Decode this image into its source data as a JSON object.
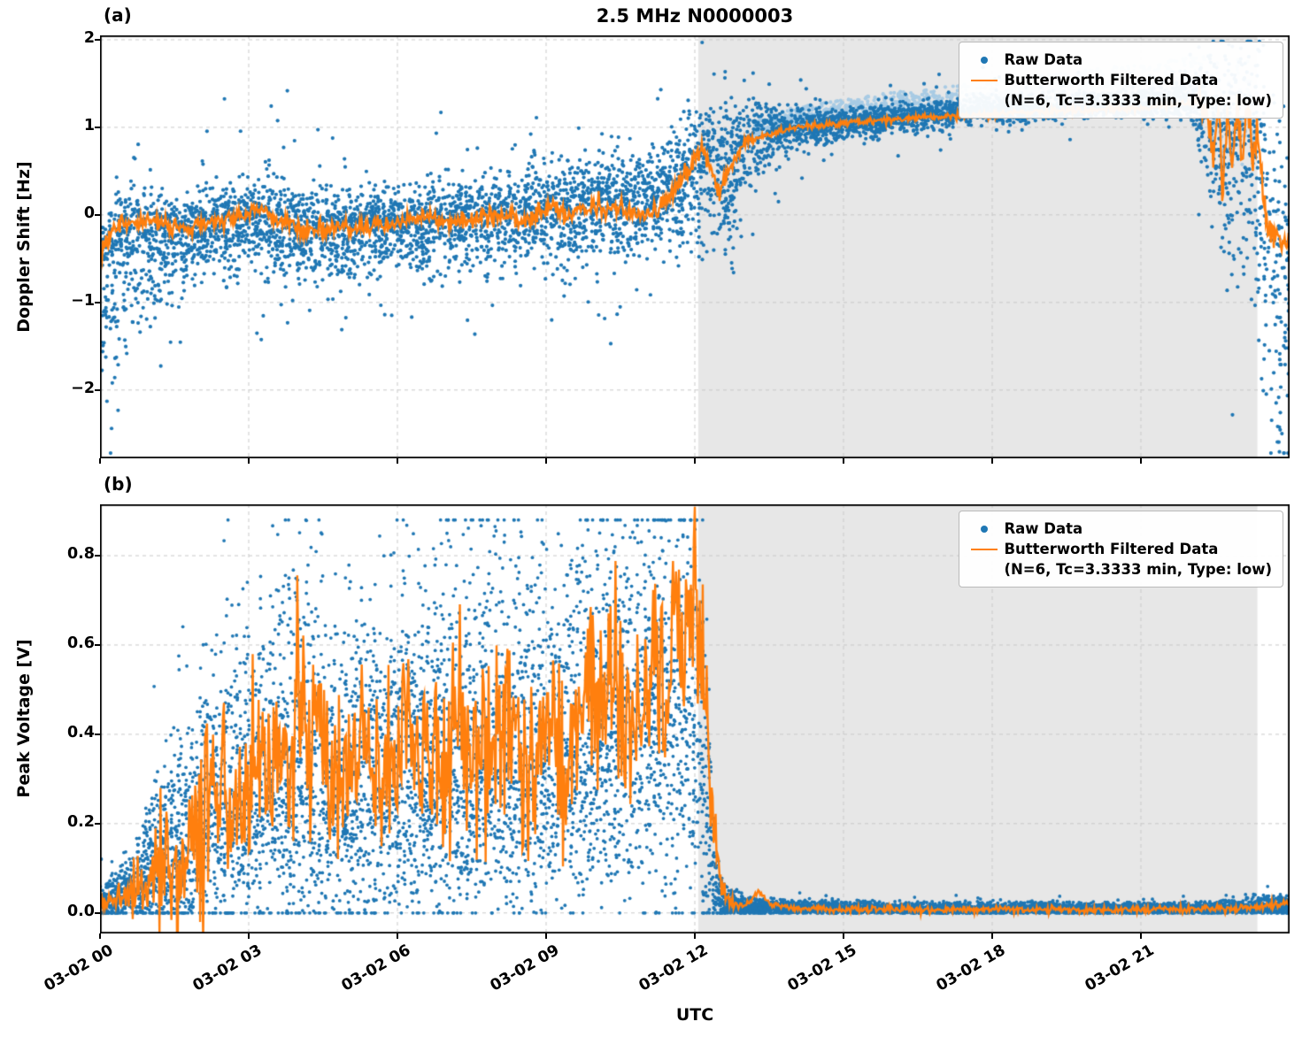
{
  "figure": {
    "title": "2.5 MHz N0000003",
    "panel_a_label": "(a)",
    "panel_b_label": "(b)",
    "xlabel": "UTC",
    "ylabel_a": "Doppler Shift [Hz]",
    "ylabel_b": "Peak Voltage [V]"
  },
  "legend": {
    "raw_label": "Raw Data",
    "filtered_label": "Butterworth Filtered Data",
    "filtered_sublabel": "(N=6, Tc=3.3333 min, Type: low)"
  },
  "colors": {
    "raw": "#1f77b4",
    "raw_light": "#a8cbe4",
    "filtered": "#ff7f0e",
    "shade": "#e7e7e7",
    "grid": "#c9c9c9",
    "frame": "#000000"
  },
  "chart_data": [
    {
      "id": "a",
      "type": "scatter",
      "title": "2.5 MHz N0000003",
      "ylabel": "Doppler Shift [Hz]",
      "xlabel": "",
      "legend_entries": [
        "Raw Data",
        "Butterworth Filtered Data (N=6, Tc=3.3333 min, Type: low)"
      ],
      "xlim": [
        0,
        24
      ],
      "ylim": [
        -2.78,
        2.05
      ],
      "grid": true,
      "show_x_tick_labels": false,
      "yticks": [
        {
          "v": 2,
          "label": "2"
        },
        {
          "v": 1,
          "label": "1"
        },
        {
          "v": 0,
          "label": "0"
        },
        {
          "v": -1,
          "label": "−1"
        },
        {
          "v": -2,
          "label": "−2"
        }
      ],
      "xticks": [
        {
          "v": 0,
          "label": "03-02 00"
        },
        {
          "v": 3,
          "label": "03-02 03"
        },
        {
          "v": 6,
          "label": "03-02 06"
        },
        {
          "v": 9,
          "label": "03-02 09"
        },
        {
          "v": 12,
          "label": "03-02 12"
        },
        {
          "v": 15,
          "label": "03-02 15"
        },
        {
          "v": 18,
          "label": "03-02 18"
        },
        {
          "v": 21,
          "label": "03-02 21"
        }
      ],
      "shade_span": [
        12.07,
        23.35
      ],
      "line": {
        "t": [
          0,
          0.15,
          0.3,
          0.5,
          0.8,
          1,
          1.5,
          2,
          2.5,
          3,
          3.1,
          3.3,
          3.6,
          4,
          4.5,
          5,
          5.5,
          6,
          6.5,
          7,
          7.5,
          8,
          8.5,
          9,
          9.5,
          10,
          10.5,
          11,
          11.3,
          11.6,
          11.9,
          12.1,
          12.3,
          12.5,
          12.7,
          12.9,
          13.1,
          13.4,
          14,
          15,
          16,
          17,
          18,
          19,
          20,
          21,
          21.5,
          22,
          22.3,
          22.45,
          22.55,
          22.65,
          22.75,
          22.85,
          22.95,
          23.05,
          23.15,
          23.25,
          23.35,
          23.45,
          23.55,
          23.7,
          23.85,
          24
        ],
        "y": [
          -0.45,
          -0.3,
          -0.18,
          -0.1,
          -0.06,
          -0.08,
          -0.15,
          -0.1,
          -0.06,
          0.0,
          0.1,
          0.05,
          -0.08,
          -0.12,
          -0.18,
          -0.15,
          -0.12,
          -0.1,
          -0.02,
          -0.08,
          -0.05,
          0.0,
          -0.08,
          0.08,
          0.0,
          0.1,
          0.05,
          0.0,
          0.1,
          0.3,
          0.55,
          0.75,
          0.55,
          0.3,
          0.5,
          0.75,
          0.85,
          0.9,
          1.0,
          1.05,
          1.1,
          1.12,
          1.15,
          1.18,
          1.2,
          1.22,
          1.25,
          1.28,
          1.3,
          0.6,
          1.25,
          0.35,
          1.1,
          0.5,
          1.3,
          0.45,
          1.2,
          0.7,
          1.0,
          0.3,
          -0.1,
          -0.25,
          -0.35,
          -0.3
        ]
      },
      "line_wiggle": {
        "t": [
          0,
          0.3,
          12,
          12.4,
          13.2,
          22,
          22.35,
          23.5,
          23.8,
          24
        ],
        "w": [
          0.07,
          0.05,
          0.06,
          0.07,
          0.02,
          0.02,
          0.15,
          0.15,
          0.06,
          0.06
        ]
      },
      "line_seed": 3,
      "dot_r": 2.1,
      "scatter": {
        "n": 7000,
        "seed": 11,
        "outlier_p": 0.07,
        "outlier_mult": 2.4,
        "clip": [
          -2.72,
          1.98
        ],
        "t": [
          0,
          0.5,
          1,
          1.5,
          2,
          3,
          3.5,
          4,
          5,
          6,
          7,
          8,
          9,
          10,
          11,
          11.7,
          12.2,
          12.6,
          13,
          13.5,
          14,
          15,
          16,
          17,
          18,
          19,
          20,
          21,
          22,
          22.5,
          23,
          23.35,
          23.6,
          24
        ],
        "c": [
          -0.5,
          -0.35,
          -0.25,
          -0.2,
          -0.15,
          -0.05,
          -0.1,
          -0.15,
          -0.15,
          -0.1,
          -0.08,
          -0.02,
          0.05,
          0.1,
          0.1,
          0.4,
          0.65,
          0.5,
          0.8,
          0.95,
          1.0,
          1.05,
          1.1,
          1.15,
          1.2,
          1.2,
          1.25,
          1.25,
          1.3,
          1.0,
          0.8,
          0.6,
          -0.6,
          -0.8
        ],
        "sd": [
          0.9,
          0.7,
          0.45,
          0.35,
          0.3,
          0.25,
          0.3,
          0.3,
          0.3,
          0.25,
          0.3,
          0.25,
          0.3,
          0.3,
          0.3,
          0.35,
          0.5,
          0.55,
          0.45,
          0.2,
          0.12,
          0.1,
          0.08,
          0.07,
          0.06,
          0.06,
          0.06,
          0.06,
          0.1,
          0.6,
          0.8,
          0.9,
          1.1,
          1.0
        ],
        "su": [
          0.35,
          0.3,
          0.25,
          0.2,
          0.2,
          0.2,
          0.25,
          0.2,
          0.2,
          0.2,
          0.25,
          0.2,
          0.3,
          0.25,
          0.3,
          0.3,
          0.3,
          0.35,
          0.25,
          0.15,
          0.1,
          0.08,
          0.08,
          0.08,
          0.08,
          0.08,
          0.08,
          0.1,
          0.15,
          0.45,
          0.6,
          0.7,
          0.8,
          0.6
        ]
      },
      "scatter_light": {
        "n": 1700,
        "seed": 7,
        "t": [
          13.2,
          16,
          19,
          22,
          23.35
        ],
        "off_lo": [
          0.02,
          0.02,
          0.03,
          0.05,
          0.05
        ],
        "off_hi": [
          0.2,
          0.3,
          0.42,
          0.55,
          0.65
        ]
      }
    },
    {
      "id": "b",
      "type": "scatter",
      "title": "",
      "ylabel": "Peak Voltage [V]",
      "xlabel": "UTC",
      "legend_entries": [
        "Raw Data",
        "Butterworth Filtered Data (N=6, Tc=3.3333 min, Type: low)"
      ],
      "xlim": [
        0,
        24
      ],
      "ylim": [
        -0.046,
        0.915
      ],
      "grid": true,
      "show_x_tick_labels": true,
      "yticks": [
        {
          "v": 0.8,
          "label": "0.8"
        },
        {
          "v": 0.6,
          "label": "0.6"
        },
        {
          "v": 0.4,
          "label": "0.4"
        },
        {
          "v": 0.2,
          "label": "0.2"
        },
        {
          "v": 0.0,
          "label": "0.0"
        }
      ],
      "xticks": [
        {
          "v": 0,
          "label": "03-02 00"
        },
        {
          "v": 3,
          "label": "03-02 03"
        },
        {
          "v": 6,
          "label": "03-02 06"
        },
        {
          "v": 9,
          "label": "03-02 09"
        },
        {
          "v": 12,
          "label": "03-02 12"
        },
        {
          "v": 15,
          "label": "03-02 15"
        },
        {
          "v": 18,
          "label": "03-02 18"
        },
        {
          "v": 21,
          "label": "03-02 21"
        }
      ],
      "shade_span": [
        12.07,
        23.35
      ],
      "line": {
        "t": [
          0,
          0.3,
          0.6,
          1,
          1.3,
          1.6,
          2,
          2.2,
          2.4,
          2.7,
          3,
          3.2,
          3.4,
          3.7,
          4,
          4.2,
          4.4,
          4.6,
          5,
          5.2,
          5.5,
          6,
          6.2,
          6.5,
          7,
          7.2,
          7.5,
          8,
          8.3,
          8.6,
          9,
          9.2,
          9.5,
          10,
          10.3,
          10.6,
          11,
          11.2,
          11.4,
          11.6,
          11.8,
          12,
          12.1,
          12.2,
          12.3,
          12.45,
          12.6,
          12.8,
          13,
          13.3,
          13.5,
          14,
          15,
          16,
          17,
          18,
          19,
          20,
          21,
          22,
          23,
          23.5,
          24
        ],
        "y": [
          0.02,
          0.03,
          0.05,
          0.09,
          0.12,
          0.1,
          0.18,
          0.3,
          0.22,
          0.28,
          0.25,
          0.45,
          0.3,
          0.33,
          0.5,
          0.42,
          0.52,
          0.35,
          0.28,
          0.38,
          0.3,
          0.32,
          0.42,
          0.35,
          0.3,
          0.48,
          0.36,
          0.4,
          0.45,
          0.35,
          0.42,
          0.36,
          0.4,
          0.45,
          0.52,
          0.42,
          0.5,
          0.62,
          0.48,
          0.68,
          0.52,
          0.75,
          0.6,
          0.55,
          0.3,
          0.1,
          0.04,
          0.02,
          0.015,
          0.05,
          0.02,
          0.01,
          0.008,
          0.008,
          0.008,
          0.008,
          0.008,
          0.008,
          0.008,
          0.008,
          0.01,
          0.015,
          0.02
        ]
      },
      "line_wiggle": {
        "t": [
          0,
          0.5,
          1.5,
          12.2,
          12.5,
          12.9,
          24
        ],
        "w": [
          0.008,
          0.02,
          0.11,
          0.11,
          0.025,
          0.004,
          0.004
        ]
      },
      "line_seed": 5,
      "dot_r": 1.9,
      "scatter": {
        "n": 10000,
        "seed": 23,
        "outlier_p": 0.05,
        "outlier_mult": 2.0,
        "clip": [
          0,
          0.88
        ],
        "t": [
          0,
          0.5,
          1,
          1.5,
          2,
          2.5,
          3,
          3.5,
          4,
          4.5,
          5,
          5.5,
          6,
          6.5,
          7,
          7.5,
          8,
          8.5,
          9,
          9.5,
          10,
          10.5,
          11,
          11.5,
          12,
          12.2,
          12.4,
          12.6,
          13,
          14,
          16,
          18,
          20,
          22,
          23,
          24
        ],
        "c": [
          0.02,
          0.04,
          0.08,
          0.12,
          0.18,
          0.22,
          0.25,
          0.3,
          0.3,
          0.28,
          0.25,
          0.28,
          0.3,
          0.3,
          0.3,
          0.32,
          0.33,
          0.34,
          0.35,
          0.36,
          0.38,
          0.4,
          0.42,
          0.45,
          0.48,
          0.3,
          0.05,
          0.02,
          0.012,
          0.01,
          0.008,
          0.008,
          0.008,
          0.008,
          0.01,
          0.015
        ],
        "sd": [
          0.015,
          0.03,
          0.05,
          0.08,
          0.1,
          0.12,
          0.13,
          0.15,
          0.15,
          0.14,
          0.13,
          0.14,
          0.15,
          0.15,
          0.15,
          0.15,
          0.15,
          0.16,
          0.16,
          0.16,
          0.17,
          0.17,
          0.18,
          0.18,
          0.2,
          0.2,
          0.04,
          0.015,
          0.008,
          0.006,
          0.005,
          0.005,
          0.005,
          0.005,
          0.006,
          0.008
        ],
        "su": [
          0.02,
          0.04,
          0.08,
          0.12,
          0.15,
          0.18,
          0.2,
          0.22,
          0.25,
          0.22,
          0.2,
          0.22,
          0.22,
          0.24,
          0.25,
          0.25,
          0.25,
          0.25,
          0.25,
          0.25,
          0.25,
          0.25,
          0.25,
          0.24,
          0.22,
          0.2,
          0.05,
          0.02,
          0.01,
          0.008,
          0.007,
          0.007,
          0.007,
          0.007,
          0.01,
          0.012
        ]
      }
    }
  ]
}
